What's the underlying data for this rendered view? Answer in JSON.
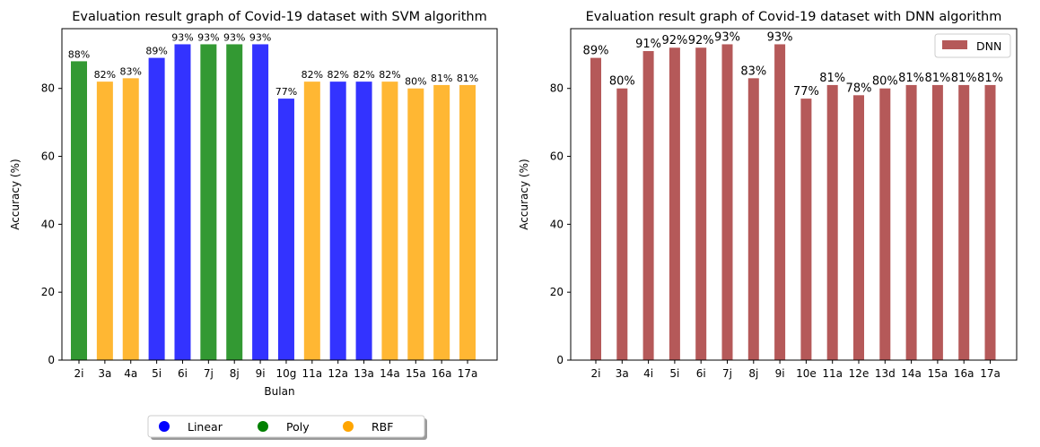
{
  "chart_data": [
    {
      "type": "bar",
      "title": "Evaluation result graph of Covid-19 dataset with SVM algorithm",
      "xlabel": "Bulan",
      "ylabel": "Accuracy (%)",
      "ylim": [
        0,
        97.6
      ],
      "yticks": [
        0,
        20,
        40,
        60,
        80
      ],
      "categories": [
        "2i",
        "3a",
        "4a",
        "5i",
        "6i",
        "7j",
        "8j",
        "9i",
        "10g",
        "11a",
        "12a",
        "13a",
        "14a",
        "15a",
        "16a",
        "17a"
      ],
      "values": [
        88,
        82,
        83,
        89,
        93,
        93,
        93,
        93,
        77,
        82,
        82,
        82,
        82,
        80,
        81,
        81
      ],
      "kernels": [
        "Poly",
        "RBF",
        "RBF",
        "Linear",
        "Linear",
        "Poly",
        "Poly",
        "Linear",
        "Linear",
        "RBF",
        "Linear",
        "Linear",
        "RBF",
        "RBF",
        "RBF",
        "RBF"
      ],
      "data_labels": [
        "88%",
        "82%",
        "83%",
        "89%",
        "93%",
        "93%",
        "93%",
        "93%",
        "77%",
        "82%",
        "82%",
        "82%",
        "82%",
        "80%",
        "81%",
        "81%"
      ],
      "legend": {
        "placement": "bottom-center",
        "entries": [
          {
            "label": "Linear",
            "color": "#0000ff"
          },
          {
            "label": "Poly",
            "color": "#008000"
          },
          {
            "label": "RBF",
            "color": "#ffa500"
          }
        ]
      },
      "bar_colors": {
        "Linear": "#3333ff",
        "Poly": "#339933",
        "RBF": "#ffb733"
      }
    },
    {
      "type": "bar",
      "title": "Evaluation result graph of Covid-19 dataset with DNN algorithm",
      "xlabel": "",
      "ylabel": "Accuracy (%)",
      "ylim": [
        0,
        97.6
      ],
      "yticks": [
        0,
        20,
        40,
        60,
        80
      ],
      "categories": [
        "2i",
        "3a",
        "4i",
        "5i",
        "6i",
        "7j",
        "8j",
        "9i",
        "10e",
        "11a",
        "12e",
        "13d",
        "14a",
        "15a",
        "16a",
        "17a"
      ],
      "values": [
        89,
        80,
        91,
        92,
        92,
        93,
        83,
        93,
        77,
        81,
        78,
        80,
        81,
        81,
        81,
        81
      ],
      "data_labels": [
        "89%",
        "80%",
        "91%",
        "92%",
        "92%",
        "93%",
        "83%",
        "93%",
        "77%",
        "81%",
        "78%",
        "80%",
        "81%",
        "81%",
        "81%",
        "81%"
      ],
      "legend": {
        "placement": "top-right",
        "entries": [
          {
            "label": "DNN",
            "color": "#b55959"
          }
        ]
      },
      "bar_color": "#b55959"
    }
  ]
}
